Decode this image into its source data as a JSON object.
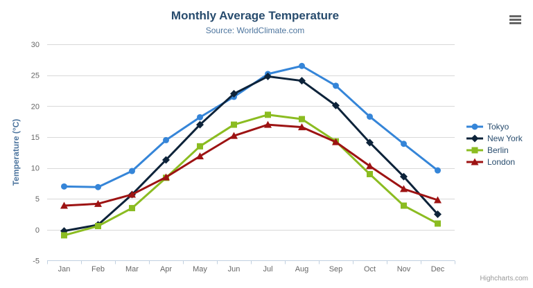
{
  "chart": {
    "title": "Monthly Average Temperature",
    "subtitle": "Source: WorldClimate.com",
    "credits": "Highcharts.com",
    "menu_icon": "hamburger-icon"
  },
  "chart_data": {
    "type": "line",
    "title": "Monthly Average Temperature",
    "subtitle": "Source: WorldClimate.com",
    "categories": [
      "Jan",
      "Feb",
      "Mar",
      "Apr",
      "May",
      "Jun",
      "Jul",
      "Aug",
      "Sep",
      "Oct",
      "Nov",
      "Dec"
    ],
    "xlabel": "",
    "ylabel": "Temperature (°C)",
    "ylim": [
      -5,
      30
    ],
    "ytick_interval": 5,
    "grid": true,
    "legend_position": "right",
    "series": [
      {
        "name": "Tokyo",
        "color": "#3585d8",
        "marker": "circle",
        "values": [
          7.0,
          6.9,
          9.5,
          14.5,
          18.2,
          21.5,
          25.2,
          26.5,
          23.3,
          18.3,
          13.9,
          9.6
        ]
      },
      {
        "name": "New York",
        "color": "#0d233a",
        "marker": "diamond",
        "values": [
          -0.2,
          0.8,
          5.7,
          11.3,
          17.0,
          22.0,
          24.8,
          24.1,
          20.1,
          14.1,
          8.6,
          2.5
        ]
      },
      {
        "name": "Berlin",
        "color": "#8bbc21",
        "marker": "square",
        "values": [
          -0.9,
          0.6,
          3.5,
          8.4,
          13.5,
          17.0,
          18.6,
          17.9,
          14.3,
          9.0,
          3.9,
          1.0
        ]
      },
      {
        "name": "London",
        "color": "#9d1313",
        "marker": "triangle",
        "values": [
          3.9,
          4.2,
          5.7,
          8.5,
          11.9,
          15.2,
          17.0,
          16.6,
          14.2,
          10.3,
          6.6,
          4.8
        ]
      }
    ]
  },
  "colors": {
    "title": "#274b6d",
    "subtitle": "#4d759e",
    "axis_label": "#666666",
    "axis_line": "#c0d0e0",
    "grid": "#d8d8d8",
    "legend_text": "#274b6d",
    "credits": "#999999"
  }
}
